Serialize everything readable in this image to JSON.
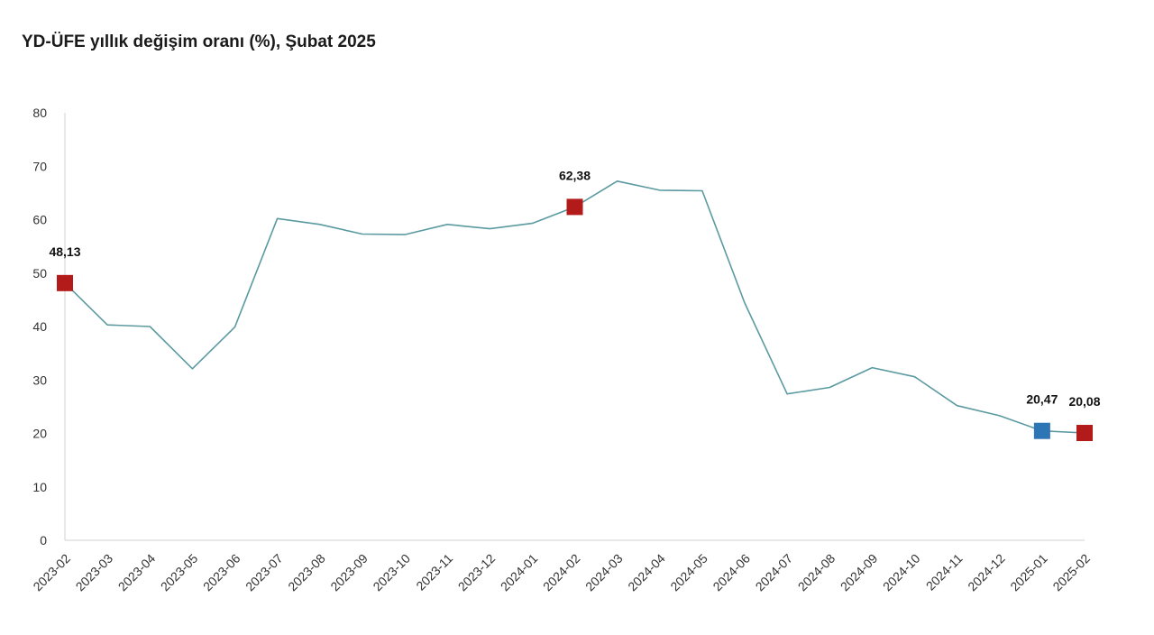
{
  "chart_data": {
    "type": "line",
    "title": "YD-ÜFE yıllık değişim oranı (%), Şubat 2025",
    "xlabel": "",
    "ylabel": "",
    "ylim": [
      0,
      80
    ],
    "yticks": [
      0,
      10,
      20,
      30,
      40,
      50,
      60,
      70,
      80
    ],
    "grid": false,
    "categories": [
      "2023-02",
      "2023-03",
      "2023-04",
      "2023-05",
      "2023-06",
      "2023-07",
      "2023-08",
      "2023-09",
      "2023-10",
      "2023-11",
      "2023-12",
      "2024-01",
      "2024-02",
      "2024-03",
      "2024-04",
      "2024-05",
      "2024-06",
      "2024-07",
      "2024-08",
      "2024-09",
      "2024-10",
      "2024-11",
      "2024-12",
      "2025-01",
      "2025-02"
    ],
    "series": [
      {
        "values": [
          48.13,
          40.3,
          40.0,
          32.1,
          39.9,
          60.2,
          59.1,
          57.3,
          57.2,
          59.1,
          58.3,
          59.3,
          62.38,
          67.2,
          65.5,
          65.4,
          44.4,
          27.4,
          28.6,
          32.3,
          30.6,
          25.2,
          23.3,
          20.47,
          20.08
        ],
        "color": "#5b9aa0"
      }
    ],
    "markers": [
      {
        "index": 0,
        "label": "48,13",
        "color": "#b31b1b"
      },
      {
        "index": 12,
        "label": "62,38",
        "color": "#b31b1b"
      },
      {
        "index": 23,
        "label": "20,47",
        "color": "#2e75b6"
      },
      {
        "index": 24,
        "label": "20,08",
        "color": "#b31b1b"
      }
    ]
  }
}
